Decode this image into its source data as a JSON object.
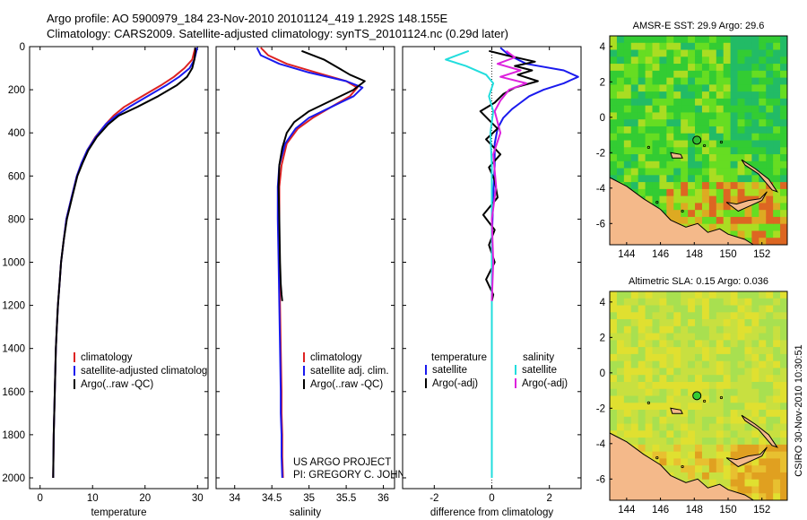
{
  "header": {
    "line1": "Argo profile: AO 5900979_184 23-Nov-2010 20101124_419 1.292S 148.155E",
    "line2": "Climatology: CARS2009. Satellite-adjusted climatology: synTS_20101124.nc (0.29d later)"
  },
  "colors": {
    "climatology": "#dd2222",
    "satellite": "#1a1aee",
    "argo": "#000000",
    "sat_sal": "#22dddd",
    "argo_sal": "#dd22dd",
    "land": "#f4b98a"
  },
  "chart_data": [
    {
      "id": "temperature",
      "type": "line",
      "xlabel": "temperature",
      "xlim": [
        -2,
        32
      ],
      "ylim": [
        2050,
        0
      ],
      "xticks": [
        0,
        10,
        20,
        30
      ],
      "yticks": [
        0,
        200,
        400,
        600,
        800,
        1000,
        1200,
        1400,
        1600,
        1800,
        2000
      ],
      "legend": [
        "climatology",
        "satellite-adjusted climatolog",
        "Argo(..raw -QC)"
      ],
      "series": [
        {
          "name": "climatology",
          "color_key": "climatology",
          "x": [
            29.6,
            29.4,
            29.0,
            27.5,
            25.5,
            23.0,
            19.5,
            16.0,
            14.0,
            12.5,
            10.5,
            9.0,
            7.9,
            7.0,
            6.0,
            5.0,
            4.5,
            4.0,
            3.7,
            3.4,
            3.2,
            3.0,
            2.8,
            2.6,
            2.5
          ],
          "y": [
            5,
            20,
            60,
            100,
            140,
            180,
            230,
            280,
            320,
            360,
            420,
            480,
            540,
            600,
            700,
            800,
            900,
            1000,
            1100,
            1200,
            1300,
            1400,
            1600,
            1800,
            2000
          ]
        },
        {
          "name": "satellite-adjusted climatolog",
          "color_key": "satellite",
          "x": [
            29.9,
            29.8,
            29.4,
            28.5,
            26.5,
            24.0,
            20.5,
            17.0,
            14.5,
            12.5,
            10.6,
            9.0,
            7.9,
            7.0,
            6.0,
            5.0,
            4.5,
            4.0,
            3.7,
            3.4,
            3.2,
            3.0,
            2.8,
            2.6,
            2.5
          ],
          "y": [
            5,
            20,
            60,
            100,
            140,
            180,
            230,
            280,
            320,
            360,
            420,
            480,
            540,
            600,
            700,
            800,
            900,
            1000,
            1100,
            1200,
            1300,
            1400,
            1600,
            1800,
            2000
          ]
        },
        {
          "name": "Argo(..raw -QC)",
          "color_key": "argo",
          "x": [
            29.5,
            29.6,
            29.4,
            29.0,
            28.0,
            26.0,
            22.5,
            18.5,
            15.0,
            13.0,
            10.8,
            9.2,
            8.1,
            7.1,
            6.1,
            5.1,
            4.5,
            4.0,
            3.7,
            3.4,
            3.2,
            3.0,
            2.8,
            2.6,
            2.5
          ],
          "y": [
            5,
            20,
            60,
            100,
            140,
            180,
            230,
            280,
            320,
            360,
            420,
            480,
            540,
            600,
            700,
            800,
            900,
            1000,
            1100,
            1200,
            1300,
            1400,
            1600,
            1800,
            2000
          ]
        }
      ]
    },
    {
      "id": "salinity",
      "type": "line",
      "xlabel": "salinity",
      "xlim": [
        33.75,
        36.15
      ],
      "ylim": [
        2050,
        0
      ],
      "xticks": [
        34,
        34.5,
        35,
        35.5,
        36
      ],
      "legend": [
        "climatology",
        "satellite adj. clim.",
        "Argo(..raw -QC)"
      ],
      "annotation": [
        "US ARGO PROJECT",
        "PI: GREGORY C. JOHNSON"
      ],
      "series": [
        {
          "name": "climatology",
          "color_key": "climatology",
          "x": [
            34.35,
            34.45,
            34.7,
            35.1,
            35.5,
            35.65,
            35.55,
            35.3,
            35.05,
            34.85,
            34.7,
            34.63,
            34.6,
            34.6,
            34.6,
            34.61,
            34.62,
            34.63,
            34.63,
            34.64,
            34.64,
            34.65
          ],
          "y": [
            5,
            40,
            80,
            120,
            160,
            190,
            230,
            280,
            330,
            380,
            450,
            550,
            650,
            800,
            1000,
            1200,
            1400,
            1600,
            1700,
            1800,
            1900,
            2000
          ]
        },
        {
          "name": "satellite adj. clim.",
          "color_key": "satellite",
          "x": [
            34.3,
            34.35,
            34.6,
            35.0,
            35.5,
            35.72,
            35.6,
            35.3,
            35.0,
            34.82,
            34.68,
            34.6,
            34.58,
            34.58,
            34.59,
            34.6,
            34.61,
            34.62,
            34.62,
            34.63,
            34.63,
            34.64
          ],
          "y": [
            5,
            40,
            80,
            120,
            160,
            190,
            230,
            280,
            330,
            380,
            450,
            550,
            650,
            800,
            1000,
            1200,
            1400,
            1600,
            1700,
            1800,
            1900,
            2000
          ]
        },
        {
          "name": "Argo(..raw -QC)",
          "color_key": "argo",
          "x": [
            34.9,
            35.2,
            35.4,
            35.55,
            35.75,
            35.6,
            35.3,
            35.0,
            34.8,
            34.7,
            34.64,
            34.6,
            34.59,
            34.6,
            34.61,
            34.62,
            34.63,
            34.64
          ],
          "y": [
            20,
            60,
            100,
            130,
            160,
            200,
            250,
            300,
            350,
            400,
            470,
            550,
            650,
            800,
            1000,
            1100,
            1150,
            1180
          ]
        }
      ]
    },
    {
      "id": "difference",
      "type": "line",
      "xlabel": "difference from climatology",
      "xlim": [
        -3.1,
        3.1
      ],
      "ylim": [
        2050,
        0
      ],
      "xticks": [
        -2,
        0,
        2
      ],
      "legend": {
        "temperature": {
          "heading": "temperature",
          "items": [
            "satellite",
            "Argo(-adj)"
          ]
        },
        "salinity": {
          "heading": "salinity",
          "items": [
            "satellite",
            "Argo(-adj)"
          ]
        }
      },
      "series": [
        {
          "name": "temperature satellite",
          "color_key": "satellite",
          "x": [
            0.3,
            0.6,
            1.2,
            2.5,
            3.0,
            2.5,
            1.8,
            1.3,
            1.0,
            0.7,
            0.4,
            0.2,
            0.1,
            0.1,
            0.05,
            0,
            0,
            0,
            0,
            0
          ],
          "y": [
            5,
            40,
            80,
            110,
            140,
            170,
            200,
            230,
            260,
            290,
            330,
            380,
            450,
            550,
            700,
            900,
            1100,
            1300,
            1600,
            2000
          ]
        },
        {
          "name": "temperature Argo(-adj)",
          "color_key": "argo",
          "x": [
            -0.1,
            0.5,
            1.5,
            0.8,
            1.4,
            0.9,
            1.6,
            0.8,
            0.4,
            0.1,
            -0.4,
            -0.1,
            0.2,
            -0.2,
            0.3,
            -0.1,
            0.1,
            0.2,
            -0.3,
            0.1,
            -0.1,
            0.1,
            -0.2,
            0.05,
            0
          ],
          "y": [
            20,
            40,
            70,
            90,
            110,
            130,
            160,
            190,
            220,
            260,
            300,
            340,
            380,
            430,
            500,
            560,
            620,
            700,
            780,
            850,
            920,
            1000,
            1080,
            1150,
            1180
          ]
        },
        {
          "name": "salinity satellite",
          "color_key": "sat_sal",
          "x": [
            -0.8,
            -1.6,
            -0.9,
            -0.2,
            0.05,
            -0.1,
            0.05,
            -0.05,
            0,
            0,
            0,
            0,
            0
          ],
          "y": [
            20,
            60,
            90,
            130,
            170,
            230,
            300,
            400,
            550,
            800,
            1200,
            1600,
            2000
          ]
        },
        {
          "name": "salinity Argo(-adj)",
          "color_key": "argo_sal",
          "x": [
            0.5,
            0.8,
            0.2,
            1.0,
            0.3,
            1.2,
            0.6,
            0.3,
            0.1,
            0.3,
            0.05,
            0.15,
            0,
            0.05,
            0
          ],
          "y": [
            20,
            50,
            80,
            110,
            140,
            170,
            200,
            250,
            300,
            400,
            500,
            650,
            800,
            1000,
            1180
          ]
        }
      ]
    },
    {
      "id": "sst_map",
      "type": "heatmap",
      "title": "AMSR-E SST: 29.9 Argo: 29.6",
      "xlim": [
        143,
        153.5
      ],
      "ylim": [
        -7.2,
        4.6
      ],
      "xticks": [
        144,
        146,
        148,
        150,
        152
      ],
      "yticks": [
        4,
        2,
        0,
        -2,
        -4,
        -6
      ],
      "argo_position": [
        148.155,
        -1.292
      ]
    },
    {
      "id": "sla_map",
      "type": "heatmap",
      "title": "Altimetric SLA: 0.15 Argo: 0.036",
      "xlim": [
        143,
        153.5
      ],
      "ylim": [
        -7.2,
        4.6
      ],
      "xticks": [
        144,
        146,
        148,
        150,
        152
      ],
      "yticks": [
        4,
        2,
        0,
        -2,
        -4,
        -6
      ],
      "argo_position": [
        148.155,
        -1.292
      ]
    }
  ],
  "footer": {
    "stamp": "CSIRO 30-Nov-2010 10:30:51"
  }
}
